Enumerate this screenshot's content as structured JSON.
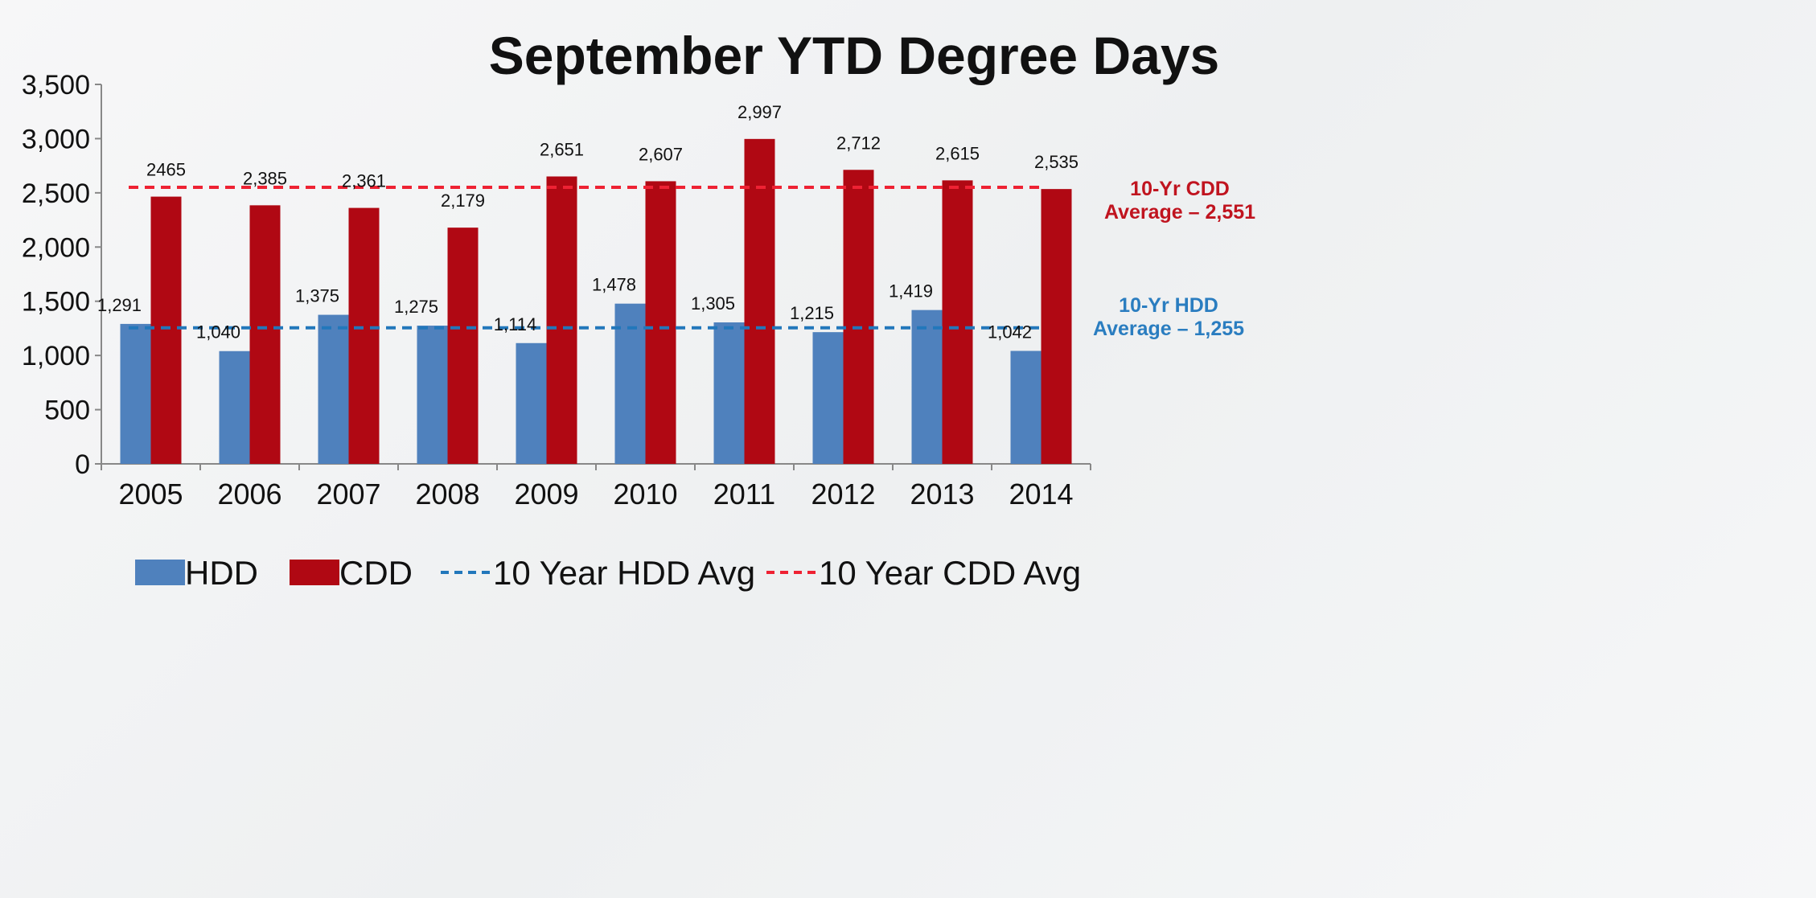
{
  "chart_data": {
    "type": "bar",
    "title": "September YTD Degree Days",
    "xlabel": "",
    "ylabel": "",
    "ylim": [
      0,
      3500
    ],
    "yticks": [
      0,
      500,
      1000,
      1500,
      2000,
      2500,
      3000,
      3500
    ],
    "ytick_labels": [
      "0",
      "500",
      "1,000",
      "1,500",
      "2,000",
      "2,500",
      "3,000",
      "3,500"
    ],
    "categories": [
      "2005",
      "2006",
      "2007",
      "2008",
      "2009",
      "2010",
      "2011",
      "2012",
      "2013",
      "2014"
    ],
    "series": [
      {
        "name": "HDD",
        "color": "#4f81bd",
        "values": [
          1291,
          1040,
          1375,
          1275,
          1114,
          1478,
          1305,
          1215,
          1419,
          1042
        ],
        "labels": [
          "1,291",
          "1,040",
          "1,375",
          "1,275",
          "1,114",
          "1,478",
          "1,305",
          "1,215",
          "1,419",
          "1,042"
        ]
      },
      {
        "name": "CDD",
        "color": "#b00813",
        "values": [
          2465,
          2385,
          2361,
          2179,
          2651,
          2607,
          2997,
          2712,
          2615,
          2535
        ],
        "labels": [
          "2465",
          "2,385",
          "2,361",
          "2,179",
          "2,651",
          "2,607",
          "2,997",
          "2,712",
          "2,615",
          "2,535"
        ]
      }
    ],
    "reference_lines": [
      {
        "name": "10 Year HDD Avg",
        "value": 1255,
        "color": "#2277bb"
      },
      {
        "name": "10 Year CDD Avg",
        "value": 2551,
        "color": "#ee2233"
      }
    ],
    "annotations": [
      {
        "lines": [
          "10-Yr CDD",
          "Average – 2,551"
        ],
        "color": "#c0141f"
      },
      {
        "lines": [
          "10-Yr HDD",
          "Average – 1,255"
        ],
        "color": "#2a7dc0"
      }
    ],
    "legend": {
      "position": "bottom",
      "entries": [
        "HDD",
        "CDD",
        "10 Year HDD Avg",
        "10 Year CDD Avg"
      ]
    },
    "grid": false
  }
}
